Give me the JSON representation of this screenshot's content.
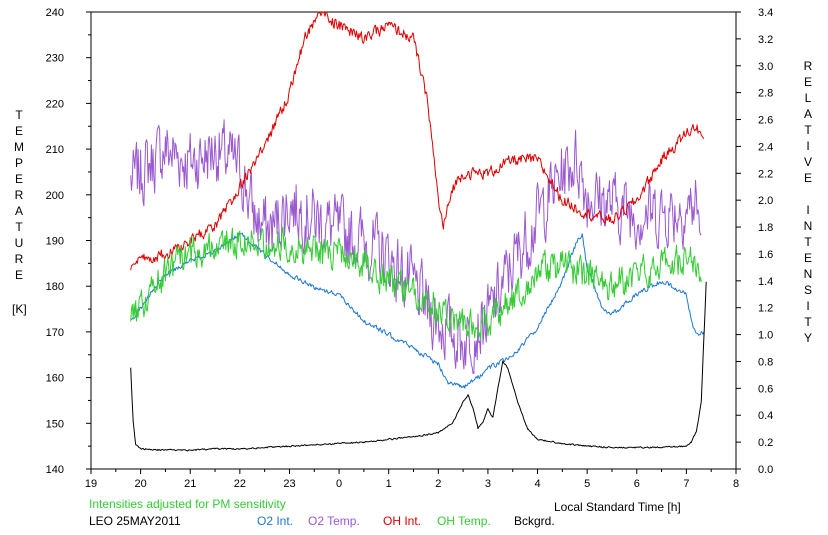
{
  "chart_data": {
    "type": "line",
    "xlabel": "Local Standard Time [h]",
    "ylabel_left_letters": [
      "T",
      "E",
      "M",
      "P",
      "E",
      "R",
      "A",
      "T",
      "U",
      "R",
      "E"
    ],
    "ylabel_left_unit": "[K]",
    "ylabel_right_letters": [
      "R",
      "E",
      "L",
      "A",
      "T",
      "I",
      "V",
      "E",
      "I",
      "N",
      "T",
      "E",
      "N",
      "S",
      "I",
      "T",
      "Y"
    ],
    "note": "Intensities adjusted for PM sensitivity",
    "station": "LEO 25MAY2011",
    "x_tick_labels": [
      "19",
      "20",
      "21",
      "22",
      "23",
      "0",
      "1",
      "2",
      "3",
      "4",
      "5",
      "6",
      "7",
      "8"
    ],
    "left_ylim": [
      140,
      240
    ],
    "left_ticks": [
      140,
      150,
      160,
      170,
      180,
      190,
      200,
      210,
      220,
      230,
      240
    ],
    "right_ylim": [
      0.0,
      3.4
    ],
    "right_tick_labels": [
      "0.0",
      "0.2",
      "0.4",
      "0.6",
      "0.8",
      "1.0",
      "1.2",
      "1.4",
      "1.6",
      "1.8",
      "2.0",
      "2.2",
      "2.4",
      "2.6",
      "2.8",
      "3.0",
      "3.2",
      "3.4"
    ],
    "legend": [
      {
        "key": "o2_int",
        "name": "O2 Int.",
        "color": "#1e78d2"
      },
      {
        "key": "o2_temp",
        "name": "O2 Temp.",
        "color": "#9b59d0"
      },
      {
        "key": "oh_int",
        "name": "OH Int.",
        "color": "#dd0000"
      },
      {
        "key": "oh_temp",
        "name": "OH Temp.",
        "color": "#33cc33"
      },
      {
        "key": "bckgrd",
        "name": "Bckgrd.",
        "color": "#000000"
      }
    ],
    "series": [
      {
        "key": "o2_temp",
        "axis": "left",
        "noise": 10,
        "x": [
          19.8,
          20.0,
          20.5,
          21.0,
          21.5,
          22.0,
          22.3,
          22.6,
          23.0,
          23.5,
          0.0,
          0.5,
          1.0,
          1.5,
          2.0,
          2.5,
          3.0,
          3.5,
          4.0,
          4.5,
          4.8,
          5.0,
          5.5,
          6.0,
          6.5,
          7.0,
          7.2,
          7.3
        ],
        "y": [
          203,
          205,
          210,
          207,
          210,
          206,
          195,
          192,
          198,
          195,
          192,
          190,
          186,
          180,
          172,
          168,
          173,
          185,
          195,
          205,
          208,
          200,
          198,
          196,
          196,
          197,
          198,
          190
        ]
      },
      {
        "key": "o2_int",
        "axis": "right",
        "noise": 0.025,
        "x": [
          19.8,
          20.0,
          20.5,
          21.0,
          21.5,
          22.0,
          22.5,
          23.0,
          23.5,
          0.0,
          0.5,
          1.0,
          1.5,
          2.0,
          2.2,
          2.5,
          2.8,
          3.0,
          3.3,
          3.6,
          4.0,
          4.5,
          4.8,
          4.9,
          5.0,
          5.3,
          5.5,
          6.0,
          6.5,
          7.0,
          7.1,
          7.2,
          7.35
        ],
        "y": [
          1.1,
          1.2,
          1.45,
          1.55,
          1.62,
          1.75,
          1.6,
          1.45,
          1.35,
          1.3,
          1.1,
          1.0,
          0.9,
          0.78,
          0.65,
          0.6,
          0.68,
          0.75,
          0.8,
          0.88,
          1.05,
          1.4,
          1.7,
          1.75,
          1.5,
          1.2,
          1.15,
          1.3,
          1.4,
          1.3,
          1.1,
          1.0,
          1.02
        ]
      },
      {
        "key": "oh_int",
        "axis": "right",
        "noise": 0.06,
        "x": [
          19.8,
          20.0,
          20.5,
          21.0,
          21.5,
          22.0,
          22.5,
          23.0,
          23.3,
          23.6,
          0.0,
          0.5,
          1.0,
          1.5,
          1.8,
          2.0,
          2.1,
          2.3,
          2.5,
          3.0,
          3.5,
          4.0,
          4.5,
          5.0,
          5.5,
          6.0,
          6.5,
          7.0,
          7.2,
          7.35
        ],
        "y": [
          1.5,
          1.55,
          1.6,
          1.7,
          1.8,
          2.1,
          2.4,
          2.8,
          3.2,
          3.4,
          3.3,
          3.2,
          3.3,
          3.2,
          2.7,
          2.0,
          1.8,
          2.1,
          2.2,
          2.2,
          2.3,
          2.3,
          2.0,
          1.9,
          1.85,
          2.0,
          2.3,
          2.5,
          2.55,
          2.45
        ]
      },
      {
        "key": "oh_temp",
        "axis": "left",
        "noise": 5,
        "x": [
          19.8,
          20.0,
          20.5,
          21.0,
          21.5,
          22.0,
          22.5,
          23.0,
          23.5,
          0.0,
          0.5,
          1.0,
          1.5,
          2.0,
          2.5,
          3.0,
          3.5,
          4.0,
          4.5,
          5.0,
          5.5,
          6.0,
          6.5,
          7.0,
          7.2,
          7.3
        ],
        "y": [
          172,
          176,
          183,
          187,
          189,
          190,
          190,
          189,
          188,
          187,
          185,
          181,
          178,
          176,
          172,
          172,
          177,
          183,
          185,
          182,
          180,
          183,
          185,
          186,
          185,
          180
        ]
      },
      {
        "key": "bckgrd",
        "axis": "right",
        "noise": 0.008,
        "x": [
          19.8,
          19.85,
          19.9,
          20.0,
          20.5,
          21.0,
          21.5,
          22.0,
          22.5,
          23.0,
          23.5,
          0.0,
          0.5,
          1.0,
          1.5,
          2.0,
          2.3,
          2.5,
          2.6,
          2.7,
          2.8,
          2.9,
          3.0,
          3.1,
          3.2,
          3.3,
          3.4,
          3.6,
          3.8,
          4.0,
          4.5,
          5.0,
          5.5,
          6.0,
          6.5,
          7.0,
          7.1,
          7.2,
          7.3,
          7.4
        ],
        "y": [
          0.75,
          0.35,
          0.18,
          0.15,
          0.14,
          0.14,
          0.15,
          0.15,
          0.16,
          0.17,
          0.18,
          0.19,
          0.2,
          0.22,
          0.24,
          0.27,
          0.35,
          0.5,
          0.55,
          0.45,
          0.3,
          0.35,
          0.45,
          0.38,
          0.6,
          0.8,
          0.75,
          0.5,
          0.3,
          0.22,
          0.19,
          0.17,
          0.16,
          0.16,
          0.16,
          0.17,
          0.2,
          0.28,
          0.5,
          1.4
        ]
      }
    ]
  }
}
